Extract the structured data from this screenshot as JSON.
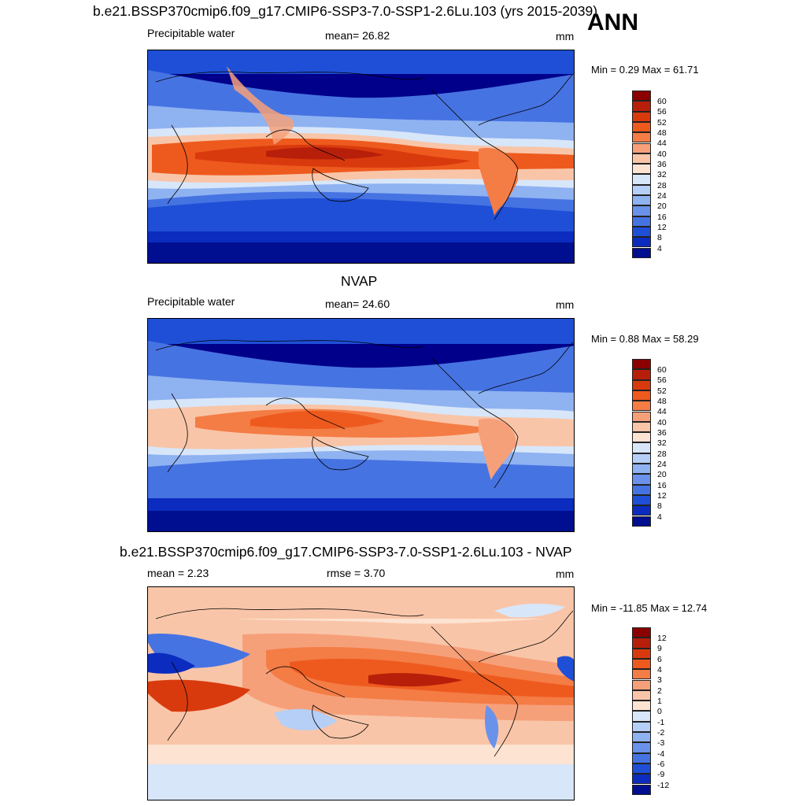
{
  "season": "ANN",
  "panels": [
    {
      "title": "b.e21.BSSP370cmip6.f09_g17.CMIP6-SSP3-7.0-SSP1-2.6Lu.103 (yrs 2015-2039)",
      "left_label": "Precipitable water",
      "center_label": "mean=  26.82",
      "units": "mm",
      "minmax": "Min =   0.29 Max =  61.71",
      "colorbar": {
        "levels": [
          "60",
          "56",
          "52",
          "48",
          "44",
          "40",
          "36",
          "32",
          "28",
          "24",
          "20",
          "16",
          "12",
          "8",
          "4"
        ],
        "colors": [
          "#8b0000",
          "#b81f0a",
          "#d93a0d",
          "#ee5a1e",
          "#f47c45",
          "#f6a07a",
          "#f9c5a8",
          "#fde3d2",
          "#d8e6fa",
          "#b6cff6",
          "#8fb2f1",
          "#6a92ea",
          "#4673e2",
          "#1f4fd6",
          "#0b2cbf",
          "#000f8f"
        ]
      }
    },
    {
      "title": "NVAP",
      "left_label": "Precipitable water",
      "center_label": "mean=  24.60",
      "units": "mm",
      "minmax": "Min =   0.88 Max =  58.29",
      "colorbar": {
        "levels": [
          "60",
          "56",
          "52",
          "48",
          "44",
          "40",
          "36",
          "32",
          "28",
          "24",
          "20",
          "16",
          "12",
          "8",
          "4"
        ],
        "colors": [
          "#8b0000",
          "#b81f0a",
          "#d93a0d",
          "#ee5a1e",
          "#f47c45",
          "#f6a07a",
          "#f9c5a8",
          "#fde3d2",
          "#d8e6fa",
          "#b6cff6",
          "#8fb2f1",
          "#6a92ea",
          "#4673e2",
          "#1f4fd6",
          "#0b2cbf",
          "#000f8f"
        ]
      }
    },
    {
      "title": "b.e21.BSSP370cmip6.f09_g17.CMIP6-SSP3-7.0-SSP1-2.6Lu.103 - NVAP",
      "left_label": "mean =   2.23",
      "center_label": "rmse =   3.70",
      "units": "mm",
      "minmax": "Min = -11.85 Max =  12.74",
      "colorbar": {
        "levels": [
          "12",
          "9",
          "6",
          "4",
          "3",
          "2",
          "1",
          "0",
          "-1",
          "-2",
          "-3",
          "-4",
          "-6",
          "-9",
          "-12"
        ],
        "colors": [
          "#8b0000",
          "#b81f0a",
          "#d93a0d",
          "#ee5a1e",
          "#f47c45",
          "#f6a07a",
          "#f9c5a8",
          "#fde3d2",
          "#d8e6fa",
          "#b6cff6",
          "#8fb2f1",
          "#6a92ea",
          "#4673e2",
          "#1f4fd6",
          "#0b2cbf",
          "#000f8f"
        ]
      }
    }
  ]
}
